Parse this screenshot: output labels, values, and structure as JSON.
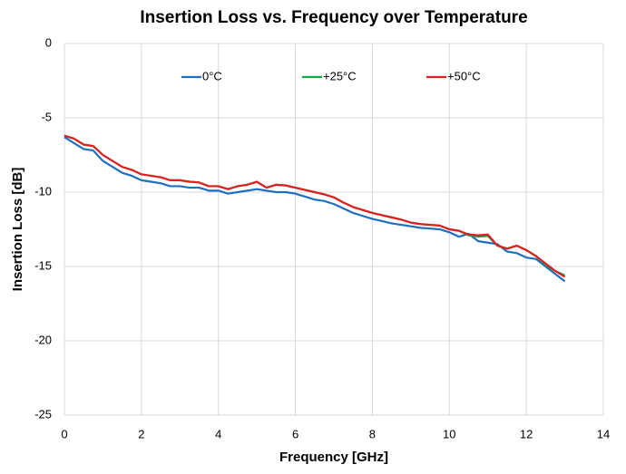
{
  "chart_data": {
    "type": "line",
    "title": "Insertion Loss vs. Frequency over Temperature",
    "x_label": "Frequency [GHz]",
    "y_label": "Insertion Loss [dB]",
    "x": [
      0,
      0.25,
      0.5,
      0.75,
      1,
      1.25,
      1.5,
      1.75,
      2,
      2.25,
      2.5,
      2.75,
      3,
      3.25,
      3.5,
      3.75,
      4,
      4.25,
      4.5,
      4.75,
      5,
      5.25,
      5.5,
      5.75,
      6,
      6.25,
      6.5,
      6.75,
      7,
      7.25,
      7.5,
      7.75,
      8,
      8.25,
      8.5,
      8.75,
      9,
      9.25,
      9.5,
      9.75,
      10,
      10.25,
      10.5,
      10.75,
      11,
      11.25,
      11.5,
      11.75,
      12,
      12.25,
      12.5,
      12.75,
      13
    ],
    "series": [
      {
        "name": "0°C",
        "color": "#1f6fbf",
        "values": [
          -6.3,
          -6.7,
          -7.1,
          -7.2,
          -7.9,
          -8.3,
          -8.7,
          -8.9,
          -9.2,
          -9.3,
          -9.4,
          -9.6,
          -9.6,
          -9.7,
          -9.7,
          -9.9,
          -9.9,
          -10.1,
          -10.0,
          -9.9,
          -9.8,
          -9.9,
          -10.0,
          -10.0,
          -10.1,
          -10.3,
          -10.5,
          -10.6,
          -10.8,
          -11.1,
          -11.4,
          -11.6,
          -11.8,
          -11.95,
          -12.1,
          -12.2,
          -12.3,
          -12.4,
          -12.45,
          -12.5,
          -12.7,
          -13.0,
          -12.8,
          -13.3,
          -13.4,
          -13.5,
          -14.0,
          -14.1,
          -14.4,
          -14.5,
          -15.0,
          -15.5,
          -16.0
        ]
      },
      {
        "name": "+25°C",
        "color": "#1aa34a",
        "values": [
          -6.2,
          -6.4,
          -6.8,
          -6.9,
          -7.5,
          -7.9,
          -8.3,
          -8.5,
          -8.8,
          -8.9,
          -9.0,
          -9.2,
          -9.2,
          -9.3,
          -9.35,
          -9.6,
          -9.6,
          -9.8,
          -9.6,
          -9.5,
          -9.3,
          -9.7,
          -9.5,
          -9.55,
          -9.7,
          -9.85,
          -10.0,
          -10.15,
          -10.35,
          -10.7,
          -11.0,
          -11.2,
          -11.4,
          -11.55,
          -11.7,
          -11.85,
          -12.05,
          -12.15,
          -12.2,
          -12.25,
          -12.5,
          -12.6,
          -12.9,
          -13.0,
          -12.95,
          -13.6,
          -13.8,
          -13.6,
          -13.9,
          -14.3,
          -14.9,
          -15.3,
          -15.6
        ]
      },
      {
        "name": "+50°C",
        "color": "#e02020",
        "values": [
          -6.2,
          -6.4,
          -6.8,
          -6.9,
          -7.5,
          -7.9,
          -8.3,
          -8.5,
          -8.8,
          -8.9,
          -9.0,
          -9.2,
          -9.2,
          -9.3,
          -9.35,
          -9.6,
          -9.6,
          -9.8,
          -9.6,
          -9.5,
          -9.3,
          -9.7,
          -9.5,
          -9.55,
          -9.7,
          -9.85,
          -10.0,
          -10.15,
          -10.35,
          -10.7,
          -11.0,
          -11.2,
          -11.4,
          -11.55,
          -11.7,
          -11.85,
          -12.05,
          -12.15,
          -12.2,
          -12.25,
          -12.5,
          -12.6,
          -12.85,
          -12.9,
          -12.85,
          -13.6,
          -13.8,
          -13.6,
          -13.9,
          -14.3,
          -14.8,
          -15.3,
          -15.7
        ]
      }
    ],
    "xlim": [
      0,
      14
    ],
    "xticks": [
      0,
      2,
      4,
      6,
      8,
      10,
      12,
      14
    ],
    "ylim": [
      -25,
      0
    ],
    "yticks": [
      0,
      -5,
      -10,
      -15,
      -20,
      -25
    ],
    "grid": true,
    "legend": "top"
  }
}
